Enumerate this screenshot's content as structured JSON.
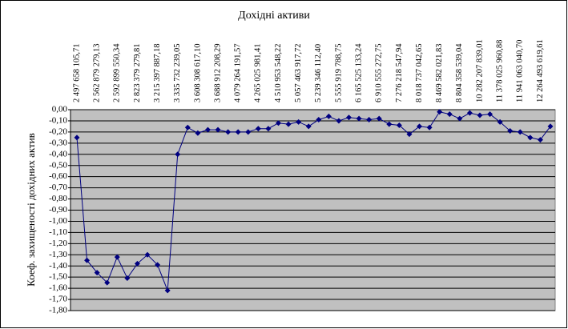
{
  "chart_data": {
    "type": "line",
    "title": "Дохідні активи",
    "y_label": "Коеф. захищеності дохідних актив",
    "categories": [
      "2 497 658 105,71",
      null,
      "2 562 879 279,13",
      null,
      "2 592 899 550,34",
      null,
      "2 823 379 279,81",
      null,
      "3 215 397 887,18",
      null,
      "3 335 732 239,05",
      null,
      "3 608 308 617,10",
      null,
      "3 688 912 208,29",
      null,
      "4 079 264 191,57",
      null,
      "4 265 025 981,41",
      null,
      "4 510 953 548,22",
      null,
      "5 057 463 917,72",
      null,
      "5 239 346 112,40",
      null,
      "5 555 919 788,75",
      null,
      "6 165 525 133,24",
      null,
      "6 910 555 272,75",
      null,
      "7 276 218 547,94",
      null,
      "8 018 737 042,65",
      null,
      "8 469 582 021,83",
      null,
      "8 804 358 539,04",
      null,
      "10 282 207 839,01",
      null,
      "11 378 025 960,88",
      null,
      "11 941 063 040,70",
      null,
      "12 264 493 619,61",
      null
    ],
    "series": [
      {
        "name": "Коеф. захищеності дохідних активів",
        "color": "#000080",
        "values": [
          -0.25,
          -1.35,
          -1.46,
          -1.55,
          -1.32,
          -1.51,
          -1.38,
          -1.3,
          -1.39,
          -1.62,
          -0.4,
          -0.16,
          -0.21,
          -0.18,
          -0.18,
          -0.2,
          -0.2,
          -0.2,
          -0.17,
          -0.17,
          -0.12,
          -0.13,
          -0.11,
          -0.15,
          -0.09,
          -0.06,
          -0.1,
          -0.07,
          -0.08,
          -0.09,
          -0.08,
          -0.13,
          -0.14,
          -0.22,
          -0.15,
          -0.16,
          -0.02,
          -0.04,
          -0.08,
          -0.03,
          -0.05,
          -0.04,
          -0.11,
          -0.19,
          -0.2,
          -0.25,
          -0.27,
          -0.15
        ]
      }
    ],
    "ylim": [
      -1.8,
      0
    ],
    "yticks": [
      {
        "value": 0,
        "label": "0,00"
      },
      {
        "value": -0.1,
        "label": "-0,10"
      },
      {
        "value": -0.2,
        "label": "-0,20"
      },
      {
        "value": -0.3,
        "label": "-0,30"
      },
      {
        "value": -0.4,
        "label": "-0,40"
      },
      {
        "value": -0.5,
        "label": "-0,50"
      },
      {
        "value": -0.6,
        "label": "-0,60"
      },
      {
        "value": -0.7,
        "label": "-0,70"
      },
      {
        "value": -0.8,
        "label": "-0,80"
      },
      {
        "value": -0.9,
        "label": "-0,90"
      },
      {
        "value": -1.0,
        "label": "-1,00"
      },
      {
        "value": -1.1,
        "label": "-1,10"
      },
      {
        "value": -1.2,
        "label": "-1,20"
      },
      {
        "value": -1.3,
        "label": "-1,30"
      },
      {
        "value": -1.4,
        "label": "-1,40"
      },
      {
        "value": -1.5,
        "label": "-1,50"
      },
      {
        "value": -1.6,
        "label": "-1,60"
      },
      {
        "value": -1.7,
        "label": "-1,70"
      },
      {
        "value": -1.8,
        "label": "-1,80"
      }
    ],
    "grid": true,
    "plot_background": "#c0c0c0"
  }
}
